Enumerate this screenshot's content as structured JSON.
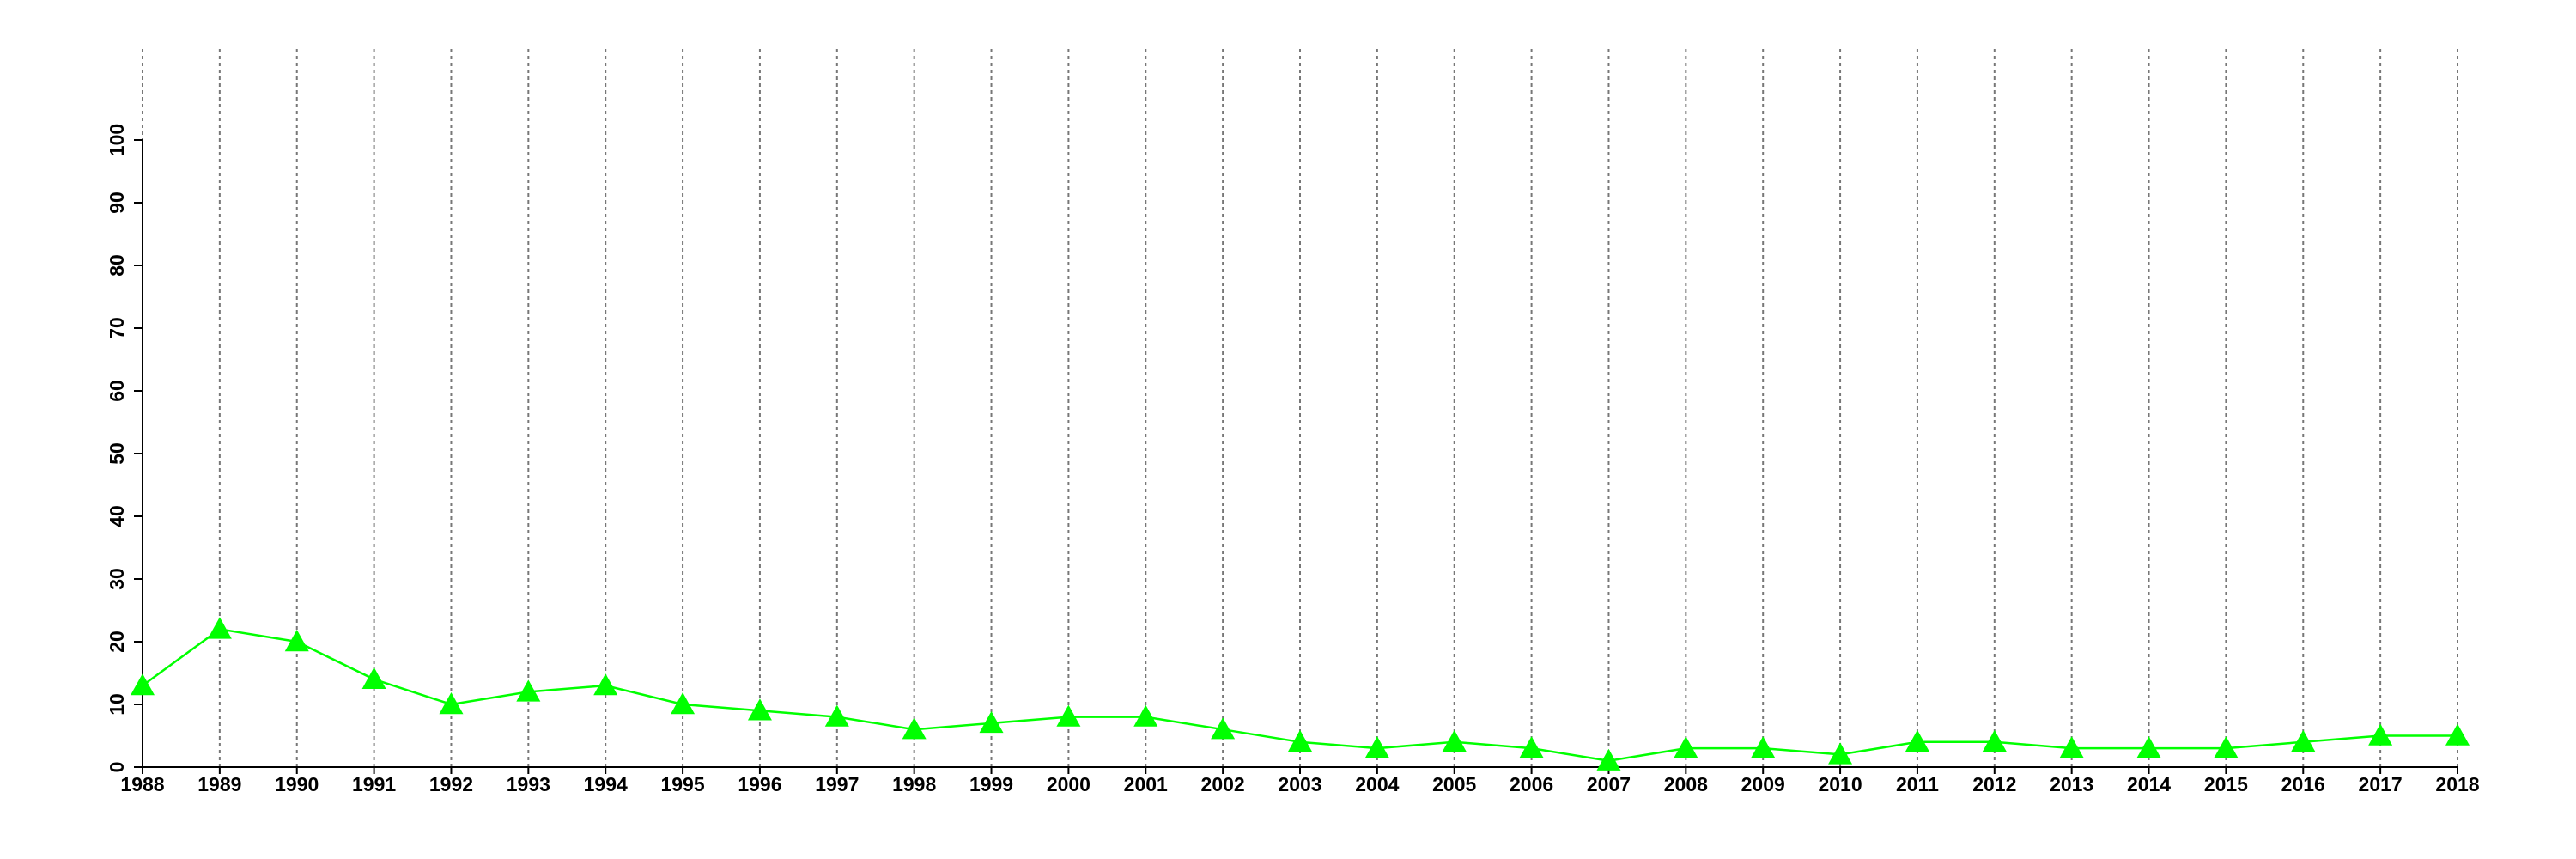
{
  "chart_data": {
    "type": "line",
    "categories": [
      "1988",
      "1989",
      "1990",
      "1991",
      "1992",
      "1993",
      "1994",
      "1995",
      "1996",
      "1997",
      "1998",
      "1999",
      "2000",
      "2001",
      "2002",
      "2003",
      "2004",
      "2005",
      "2006",
      "2007",
      "2008",
      "2009",
      "2010",
      "2011",
      "2012",
      "2013",
      "2014",
      "2015",
      "2016",
      "2017",
      "2018"
    ],
    "series": [
      {
        "color": "#00ff00",
        "values": [
          13,
          22,
          20,
          14,
          10,
          12,
          13,
          10,
          9,
          8,
          6,
          7,
          8,
          8,
          6,
          4,
          3,
          4,
          3,
          1,
          3,
          3,
          2,
          4,
          4,
          3,
          3,
          3,
          4,
          5,
          5
        ]
      }
    ],
    "ylim": [
      0,
      100
    ],
    "yticks": [
      0,
      10,
      20,
      30,
      40,
      50,
      60,
      70,
      80,
      90,
      100
    ],
    "grid": true
  }
}
